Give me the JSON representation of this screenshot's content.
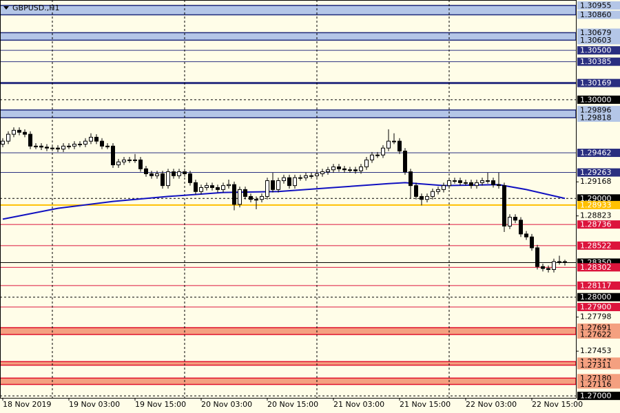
{
  "chart_data": {
    "type": "candlestick",
    "title": "GBPUSD.,H1",
    "categories": [
      "18 Nov 2019",
      null,
      null,
      null,
      null,
      null,
      null,
      null,
      null,
      null,
      null,
      null,
      "19 Nov 03:00",
      null,
      null,
      null,
      null,
      null,
      null,
      null,
      null,
      null,
      null,
      null,
      "19 Nov 15:00",
      null,
      null,
      null,
      null,
      null,
      null,
      null,
      null,
      null,
      null,
      null,
      "20 Nov 03:00",
      null,
      null,
      null,
      null,
      null,
      null,
      null,
      null,
      null,
      null,
      null,
      "20 Nov 15:00",
      null,
      null,
      null,
      null,
      null,
      null,
      null,
      null,
      null,
      null,
      null,
      "21 Nov 03:00",
      null,
      null,
      null,
      null,
      null,
      null,
      null,
      null,
      null,
      null,
      null,
      "21 Nov 15:00",
      null,
      null,
      null,
      null,
      null,
      null,
      null,
      null,
      null,
      null,
      null,
      "22 Nov 03:00",
      null,
      null,
      null,
      null,
      null,
      null,
      null,
      null,
      null,
      null,
      null,
      "22 Nov 15:00",
      null,
      null,
      null,
      null,
      null,
      null
    ],
    "open": [
      1.2955,
      1.2958,
      1.2965,
      1.2969,
      1.2967,
      1.2965,
      1.2953,
      1.2953,
      1.2952,
      1.2951,
      1.2951,
      1.295,
      1.2953,
      1.2953,
      1.2955,
      1.2955,
      1.2958,
      1.2962,
      1.2958,
      1.2953,
      1.2953,
      1.2934,
      1.2937,
      1.2939,
      1.2939,
      1.2939,
      1.293,
      1.2925,
      1.2923,
      1.2925,
      1.2913,
      1.2927,
      1.2923,
      1.2927,
      1.2925,
      1.2916,
      1.2907,
      1.2911,
      1.2913,
      1.2911,
      1.2909,
      1.2913,
      1.2914,
      1.2894,
      1.2909,
      1.2902,
      1.2899,
      1.2899,
      1.2902,
      1.2918,
      1.2909,
      1.2918,
      1.2921,
      1.2913,
      1.2921,
      1.2921,
      1.2923,
      1.2923,
      1.2925,
      1.2927,
      1.2929,
      1.2932,
      1.293,
      1.2929,
      1.2929,
      1.2928,
      1.2932,
      1.2939,
      1.2944,
      1.2944,
      1.2951,
      1.2958,
      1.2958,
      1.2948,
      1.2927,
      1.2913,
      1.2902,
      1.2899,
      1.2902,
      1.2907,
      1.2909,
      1.2913,
      1.2918,
      1.2918,
      1.2916,
      1.2916,
      1.2913,
      1.2916,
      1.2918,
      1.2918,
      1.2914,
      1.2913,
      1.2872,
      1.2881,
      1.2878,
      1.2864,
      1.2861,
      1.285,
      1.2831,
      1.2829,
      1.2828,
      1.2836,
      1.2836
    ],
    "high": [
      1.2961,
      1.2968,
      1.2972,
      1.2972,
      1.297,
      1.2968,
      1.2956,
      1.2956,
      1.2955,
      1.2954,
      1.2954,
      1.2956,
      1.2956,
      1.2958,
      1.2958,
      1.2961,
      1.2966,
      1.2965,
      1.2961,
      1.2956,
      1.2956,
      1.294,
      1.2942,
      1.2942,
      1.2945,
      1.2942,
      1.2933,
      1.2928,
      1.2928,
      1.2928,
      1.293,
      1.293,
      1.293,
      1.293,
      1.2928,
      1.2919,
      1.2914,
      1.2916,
      1.2916,
      1.2914,
      1.2916,
      1.2919,
      1.2917,
      1.2912,
      1.2912,
      1.2905,
      1.2902,
      1.2905,
      1.2921,
      1.2926,
      1.2921,
      1.2924,
      1.2924,
      1.2924,
      1.2924,
      1.2926,
      1.2926,
      1.2928,
      1.293,
      1.2932,
      1.2935,
      1.2935,
      1.2933,
      1.2932,
      1.2932,
      1.2935,
      1.2942,
      1.2947,
      1.2947,
      1.2954,
      1.297,
      1.2966,
      1.2961,
      1.2951,
      1.293,
      1.2916,
      1.2905,
      1.2905,
      1.291,
      1.2912,
      1.2916,
      1.2921,
      1.2921,
      1.2921,
      1.2919,
      1.2919,
      1.2919,
      1.2921,
      1.2926,
      1.2921,
      1.2926,
      1.2916,
      1.2884,
      1.2884,
      1.2881,
      1.2867,
      1.2864,
      1.2853,
      1.2834,
      1.2832,
      1.2839,
      1.2842,
      1.2838
    ],
    "low": [
      1.2952,
      1.2955,
      1.2962,
      1.2964,
      1.2962,
      1.295,
      1.295,
      1.2949,
      1.2948,
      1.2948,
      1.2947,
      1.2947,
      1.295,
      1.295,
      1.2952,
      1.2952,
      1.2955,
      1.2955,
      1.295,
      1.295,
      1.2931,
      1.2931,
      1.2934,
      1.2936,
      1.2936,
      1.2927,
      1.2922,
      1.292,
      1.292,
      1.291,
      1.291,
      1.292,
      1.292,
      1.2922,
      1.2913,
      1.2904,
      1.2904,
      1.2908,
      1.2908,
      1.2906,
      1.2906,
      1.291,
      1.2888,
      1.2891,
      1.2899,
      1.2896,
      1.2889,
      1.2896,
      1.2899,
      1.2906,
      1.2906,
      1.2915,
      1.291,
      1.291,
      1.2918,
      1.2918,
      1.292,
      1.292,
      1.2922,
      1.2924,
      1.2926,
      1.2927,
      1.2926,
      1.2926,
      1.2925,
      1.2925,
      1.2929,
      1.2936,
      1.2941,
      1.2941,
      1.2948,
      1.2955,
      1.2945,
      1.2924,
      1.29,
      1.2899,
      1.2893,
      1.2896,
      1.2899,
      1.2904,
      1.2906,
      1.291,
      1.2915,
      1.2913,
      1.2913,
      1.291,
      1.291,
      1.2913,
      1.2915,
      1.2911,
      1.291,
      1.2866,
      1.2869,
      1.2875,
      1.2861,
      1.2858,
      1.2847,
      1.2828,
      1.2826,
      1.2825,
      1.2825,
      1.2833,
      1.2832
    ],
    "close": [
      1.2958,
      1.2965,
      1.2969,
      1.2967,
      1.2965,
      1.2953,
      1.2953,
      1.2952,
      1.2951,
      1.2951,
      1.295,
      1.2953,
      1.2953,
      1.2955,
      1.2955,
      1.2958,
      1.2962,
      1.2958,
      1.2953,
      1.2953,
      1.2934,
      1.2937,
      1.2939,
      1.2939,
      1.2939,
      1.293,
      1.2925,
      1.2923,
      1.2925,
      1.2913,
      1.2927,
      1.2923,
      1.2927,
      1.2925,
      1.2916,
      1.2907,
      1.2911,
      1.2913,
      1.2911,
      1.2909,
      1.2913,
      1.2914,
      1.2894,
      1.2909,
      1.2902,
      1.2899,
      1.2899,
      1.2902,
      1.2918,
      1.2909,
      1.2918,
      1.2921,
      1.2913,
      1.2921,
      1.2921,
      1.2923,
      1.2923,
      1.2925,
      1.2927,
      1.2929,
      1.2932,
      1.293,
      1.2929,
      1.2929,
      1.2928,
      1.2932,
      1.2939,
      1.2944,
      1.2944,
      1.2951,
      1.2958,
      1.2958,
      1.2948,
      1.2927,
      1.2913,
      1.2902,
      1.2899,
      1.2902,
      1.2907,
      1.2909,
      1.2913,
      1.2918,
      1.2918,
      1.2916,
      1.2916,
      1.2913,
      1.2916,
      1.2918,
      1.2918,
      1.2914,
      1.2913,
      1.2872,
      1.2881,
      1.2878,
      1.2864,
      1.2861,
      1.285,
      1.2831,
      1.2829,
      1.2828,
      1.2836,
      1.2836,
      1.2835
    ],
    "ma": {
      "color": "#1010c0",
      "x": [
        0,
        10,
        20,
        30,
        40,
        50,
        60,
        70,
        73,
        80,
        90,
        95,
        102
      ],
      "values": [
        1.2879,
        1.289,
        1.2897,
        1.2902,
        1.2906,
        1.2907,
        1.2911,
        1.2915,
        1.2916,
        1.2913,
        1.2914,
        1.2909,
        1.29
      ]
    },
    "ylim": [
      1.2698,
      1.3101
    ],
    "yticks": [
      1.29168,
      1.28823,
      1.27798,
      1.27453
    ],
    "zones": [
      {
        "top": {
          "value": 1.30955,
          "label": "1.30955"
        },
        "bottom": {
          "value": 1.3086,
          "label": "1.30860"
        },
        "fill": "#b4c6e7",
        "color": "#1f2a7a"
      },
      {
        "top": {
          "value": 1.30679,
          "label": "1.30679"
        },
        "bottom": {
          "value": 1.30603,
          "label": "1.30603"
        },
        "fill": "#b4c6e7",
        "color": "#1f2a7a"
      },
      {
        "top": {
          "value": 1.29896,
          "label": "1.29896"
        },
        "bottom": {
          "value": 1.29818,
          "label": "1.29818"
        },
        "fill": "#b4c6e7",
        "color": "#1f2a7a"
      },
      {
        "top": {
          "value": 1.27691,
          "label": "1.27691"
        },
        "bottom": {
          "value": 1.27622,
          "label": "1.27622"
        },
        "fill": "#f4a080",
        "color": "#e0102a"
      },
      {
        "top": {
          "value": 1.27347,
          "label": "1.27347"
        },
        "bottom": {
          "value": 1.27311,
          "label": "1.27311"
        },
        "fill": "#f4a080",
        "color": "#e0102a"
      },
      {
        "top": {
          "value": 1.2718,
          "label": "1.27180"
        },
        "bottom": {
          "value": 1.27116,
          "label": "1.27116"
        },
        "fill": "#f4a080",
        "color": "#e0102a"
      }
    ],
    "lines": [
      {
        "value": 1.305,
        "label": "1.30500",
        "color": "#2a2f80",
        "width": 1,
        "dash": false
      },
      {
        "value": 1.30385,
        "label": "1.30385",
        "color": "#2a2f80",
        "width": 1,
        "dash": false
      },
      {
        "value": 1.30169,
        "label": "1.30169",
        "color": "#2a2f80",
        "width": 3,
        "dash": false
      },
      {
        "value": 1.3,
        "label": "1.30000",
        "color": "#000000",
        "width": 1,
        "dash": true
      },
      {
        "value": 1.29462,
        "label": "1.29462",
        "color": "#2a2f80",
        "width": 1,
        "dash": false
      },
      {
        "value": 1.29263,
        "label": "1.29263",
        "color": "#2a2f80",
        "width": 1,
        "dash": false
      },
      {
        "value": 1.29,
        "label": "1.29000",
        "color": "#000000",
        "width": 1,
        "dash": true
      },
      {
        "value": 1.28933,
        "label": "1.28933",
        "color": "#ffc000",
        "width": 2,
        "dash": false
      },
      {
        "value": 1.28736,
        "label": "1.28736",
        "color": "#dc143c",
        "width": 1,
        "dash": false
      },
      {
        "value": 1.28522,
        "label": "1.28522",
        "color": "#dc143c",
        "width": 1,
        "dash": false
      },
      {
        "value": 1.2835,
        "label": "1.28350",
        "color": "#000000",
        "width": 1,
        "dash": false
      },
      {
        "value": 1.28302,
        "label": "1.28302",
        "color": "#dc143c",
        "width": 1,
        "dash": false
      },
      {
        "value": 1.28117,
        "label": "1.28117",
        "color": "#dc143c",
        "width": 1,
        "dash": false
      },
      {
        "value": 1.28,
        "label": "1.28000",
        "color": "#000000",
        "width": 1,
        "dash": true
      },
      {
        "value": 1.279,
        "label": "1.27900",
        "color": "#dc143c",
        "width": 1,
        "dash": false
      },
      {
        "value": 1.27,
        "label": "1.27000",
        "color": "#000000",
        "width": 1,
        "dash": true
      }
    ]
  }
}
